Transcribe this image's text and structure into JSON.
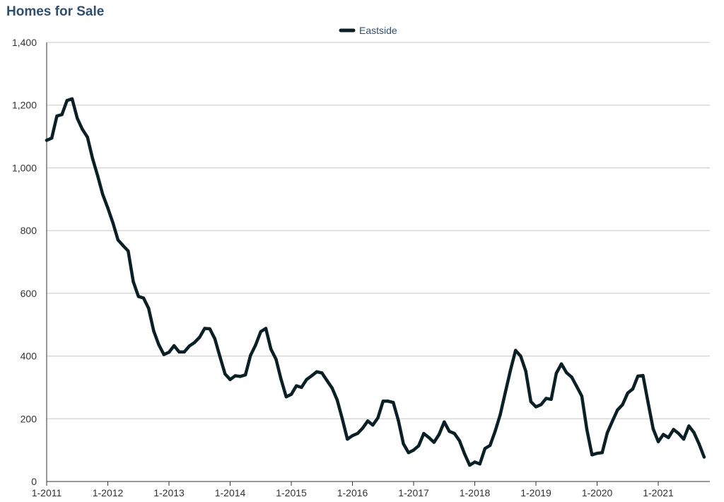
{
  "chart_data": {
    "type": "line",
    "title": "Homes for Sale",
    "xlabel": "",
    "ylabel": "",
    "ylim": [
      0,
      1400
    ],
    "yticks": [
      0,
      200,
      400,
      600,
      800,
      1000,
      1200,
      1400
    ],
    "ytick_labels": [
      "0",
      "200",
      "400",
      "600",
      "800",
      "1,000",
      "1,200",
      "1,400"
    ],
    "xticks": [
      "2011-01",
      "2012-01",
      "2013-01",
      "2014-01",
      "2015-01",
      "2016-01",
      "2017-01",
      "2018-01",
      "2019-01",
      "2020-01",
      "2021-01"
    ],
    "xtick_labels": [
      "1-2011",
      "1-2012",
      "1-2013",
      "1-2014",
      "1-2015",
      "1-2016",
      "1-2017",
      "1-2018",
      "1-2019",
      "1-2020",
      "1-2021"
    ],
    "grid": true,
    "legend": "top-center",
    "series": [
      {
        "name": "Eastside",
        "color": "#0b1f26",
        "x": [
          "2011-01",
          "2011-02",
          "2011-03",
          "2011-04",
          "2011-05",
          "2011-06",
          "2011-07",
          "2011-08",
          "2011-09",
          "2011-10",
          "2011-11",
          "2011-12",
          "2012-01",
          "2012-02",
          "2012-03",
          "2012-04",
          "2012-05",
          "2012-06",
          "2012-07",
          "2012-08",
          "2012-09",
          "2012-10",
          "2012-11",
          "2012-12",
          "2013-01",
          "2013-02",
          "2013-03",
          "2013-04",
          "2013-05",
          "2013-06",
          "2013-07",
          "2013-08",
          "2013-09",
          "2013-10",
          "2013-11",
          "2013-12",
          "2014-01",
          "2014-02",
          "2014-03",
          "2014-04",
          "2014-05",
          "2014-06",
          "2014-07",
          "2014-08",
          "2014-09",
          "2014-10",
          "2014-11",
          "2014-12",
          "2015-01",
          "2015-02",
          "2015-03",
          "2015-04",
          "2015-05",
          "2015-06",
          "2015-07",
          "2015-08",
          "2015-09",
          "2015-10",
          "2015-11",
          "2015-12",
          "2016-01",
          "2016-02",
          "2016-03",
          "2016-04",
          "2016-05",
          "2016-06",
          "2016-07",
          "2016-08",
          "2016-09",
          "2016-10",
          "2016-11",
          "2016-12",
          "2017-01",
          "2017-02",
          "2017-03",
          "2017-04",
          "2017-05",
          "2017-06",
          "2017-07",
          "2017-08",
          "2017-09",
          "2017-10",
          "2017-11",
          "2017-12",
          "2018-01",
          "2018-02",
          "2018-03",
          "2018-04",
          "2018-05",
          "2018-06",
          "2018-07",
          "2018-08",
          "2018-09",
          "2018-10",
          "2018-11",
          "2018-12",
          "2019-01",
          "2019-02",
          "2019-03",
          "2019-04",
          "2019-05",
          "2019-06",
          "2019-07",
          "2019-08",
          "2019-09",
          "2019-10",
          "2019-11",
          "2019-12",
          "2020-01",
          "2020-02",
          "2020-03",
          "2020-04",
          "2020-05",
          "2020-06",
          "2020-07",
          "2020-08",
          "2020-09",
          "2020-10",
          "2020-11",
          "2020-12",
          "2021-01",
          "2021-02",
          "2021-03",
          "2021-04",
          "2021-05",
          "2021-06",
          "2021-07",
          "2021-08",
          "2021-09",
          "2021-10"
        ],
        "values": [
          1088,
          1095,
          1165,
          1170,
          1215,
          1220,
          1158,
          1123,
          1098,
          1030,
          975,
          915,
          872,
          825,
          770,
          752,
          735,
          637,
          590,
          585,
          552,
          480,
          436,
          405,
          412,
          433,
          413,
          413,
          432,
          443,
          460,
          488,
          487,
          455,
          398,
          343,
          325,
          337,
          335,
          340,
          402,
          435,
          478,
          488,
          422,
          390,
          325,
          270,
          278,
          305,
          300,
          325,
          337,
          350,
          346,
          322,
          298,
          260,
          200,
          135,
          146,
          153,
          170,
          193,
          180,
          203,
          256,
          256,
          252,
          195,
          120,
          92,
          100,
          114,
          153,
          140,
          125,
          150,
          190,
          160,
          153,
          130,
          88,
          52,
          62,
          56,
          105,
          115,
          160,
          213,
          285,
          355,
          418,
          400,
          352,
          255,
          238,
          245,
          265,
          262,
          345,
          375,
          347,
          333,
          303,
          272,
          165,
          85,
          90,
          92,
          155,
          192,
          228,
          245,
          282,
          295,
          336,
          338,
          252,
          168,
          127,
          150,
          140,
          166,
          153,
          135,
          177,
          156,
          120,
          78
        ]
      }
    ]
  }
}
